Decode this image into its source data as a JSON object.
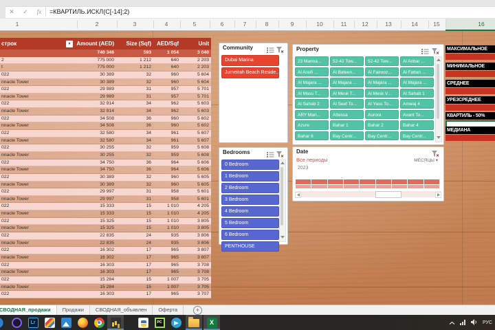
{
  "app": {
    "formula_bar": {
      "cancel_icon": "✕",
      "enter_icon": "✓",
      "fx_icon": "fx",
      "formula": "=КВАРТИЛЬ.ИСКЛ(C[-14];2)"
    }
  },
  "grid": {
    "column_headers": [
      "1",
      "2",
      "3",
      "4",
      "5",
      "6",
      "7",
      "8",
      "9",
      "10",
      "11",
      "12",
      "13",
      "14",
      "15",
      "16"
    ],
    "active_column": "16"
  },
  "pivot": {
    "headers": {
      "rows_label": "строк",
      "amount": "Amount (AED)",
      "size": "Size (Sqf)",
      "aed_sqf": "AED/Sqf",
      "unit": "Unit"
    },
    "rows": [
      {
        "label": "",
        "amount": "740 346",
        "size": "593",
        "aed_sqf": "1 054",
        "unit": "3 040",
        "style": "total"
      },
      {
        "label": "2",
        "amount": "775 000",
        "size": "1 212",
        "aed_sqf": "640",
        "unit": "2 203",
        "style": "solid"
      },
      {
        "label": "t",
        "amount": "775 000",
        "size": "1 212",
        "aed_sqf": "640",
        "unit": "2 203",
        "style": "ghost"
      },
      {
        "label": "022",
        "amount": "30 389",
        "size": "32",
        "aed_sqf": "960",
        "unit": "5 604",
        "style": "solid"
      },
      {
        "label": "nnacle Tower",
        "amount": "30 389",
        "size": "32",
        "aed_sqf": "960",
        "unit": "5 604",
        "style": "ghost"
      },
      {
        "label": "022",
        "amount": "29 989",
        "size": "31",
        "aed_sqf": "957",
        "unit": "5 701",
        "style": "solid"
      },
      {
        "label": "nnacle Tower",
        "amount": "29 989",
        "size": "31",
        "aed_sqf": "957",
        "unit": "5 701",
        "style": "ghost"
      },
      {
        "label": "022",
        "amount": "32 914",
        "size": "34",
        "aed_sqf": "962",
        "unit": "5 603",
        "style": "solid"
      },
      {
        "label": "nnacle Tower",
        "amount": "32 914",
        "size": "34",
        "aed_sqf": "962",
        "unit": "5 603",
        "style": "ghost"
      },
      {
        "label": "022",
        "amount": "34 508",
        "size": "36",
        "aed_sqf": "960",
        "unit": "5 602",
        "style": "solid"
      },
      {
        "label": "nnacle Tower",
        "amount": "34 508",
        "size": "36",
        "aed_sqf": "960",
        "unit": "5 602",
        "style": "ghost"
      },
      {
        "label": "022",
        "amount": "32 580",
        "size": "34",
        "aed_sqf": "961",
        "unit": "5 607",
        "style": "solid"
      },
      {
        "label": "nnacle Tower",
        "amount": "32 580",
        "size": "34",
        "aed_sqf": "961",
        "unit": "5 607",
        "style": "ghost"
      },
      {
        "label": "022",
        "amount": "30 255",
        "size": "32",
        "aed_sqf": "959",
        "unit": "5 608",
        "style": "solid"
      },
      {
        "label": "nnacle Tower",
        "amount": "30 255",
        "size": "32",
        "aed_sqf": "959",
        "unit": "5 608",
        "style": "ghost"
      },
      {
        "label": "022",
        "amount": "34 750",
        "size": "36",
        "aed_sqf": "964",
        "unit": "5 606",
        "style": "solid"
      },
      {
        "label": "nnacle Tower",
        "amount": "34 750",
        "size": "36",
        "aed_sqf": "964",
        "unit": "5 606",
        "style": "ghost"
      },
      {
        "label": "022",
        "amount": "30 389",
        "size": "32",
        "aed_sqf": "960",
        "unit": "5 605",
        "style": "solid"
      },
      {
        "label": "nnacle Tower",
        "amount": "30 389",
        "size": "32",
        "aed_sqf": "960",
        "unit": "5 605",
        "style": "ghost"
      },
      {
        "label": "022",
        "amount": "29 997",
        "size": "31",
        "aed_sqf": "958",
        "unit": "5 601",
        "style": "solid"
      },
      {
        "label": "nnacle Tower",
        "amount": "29 997",
        "size": "31",
        "aed_sqf": "958",
        "unit": "5 601",
        "style": "ghost"
      },
      {
        "label": "022",
        "amount": "15 333",
        "size": "15",
        "aed_sqf": "1 010",
        "unit": "4 205",
        "style": "solid"
      },
      {
        "label": "nnacle Tower",
        "amount": "15 333",
        "size": "15",
        "aed_sqf": "1 010",
        "unit": "4 205",
        "style": "ghost"
      },
      {
        "label": "022",
        "amount": "15 325",
        "size": "15",
        "aed_sqf": "1 010",
        "unit": "3 805",
        "style": "solid"
      },
      {
        "label": "nnacle Tower",
        "amount": "15 325",
        "size": "15",
        "aed_sqf": "1 010",
        "unit": "3 805",
        "style": "ghost"
      },
      {
        "label": "022",
        "amount": "22 835",
        "size": "24",
        "aed_sqf": "935",
        "unit": "3 806",
        "style": "solid"
      },
      {
        "label": "nnacle Tower",
        "amount": "22 835",
        "size": "24",
        "aed_sqf": "935",
        "unit": "3 806",
        "style": "ghost"
      },
      {
        "label": "022",
        "amount": "16 302",
        "size": "17",
        "aed_sqf": "965",
        "unit": "3 807",
        "style": "solid"
      },
      {
        "label": "nnacle Tower",
        "amount": "16 302",
        "size": "17",
        "aed_sqf": "965",
        "unit": "3 807",
        "style": "ghost"
      },
      {
        "label": "022",
        "amount": "16 303",
        "size": "17",
        "aed_sqf": "965",
        "unit": "3 708",
        "style": "solid"
      },
      {
        "label": "nnacle Tower",
        "amount": "16 303",
        "size": "17",
        "aed_sqf": "965",
        "unit": "3 708",
        "style": "ghost"
      },
      {
        "label": "022",
        "amount": "15 284",
        "size": "15",
        "aed_sqf": "1 007",
        "unit": "3 705",
        "style": "solid"
      },
      {
        "label": "nnacle Tower",
        "amount": "15 284",
        "size": "15",
        "aed_sqf": "1 007",
        "unit": "3 705",
        "style": "ghost"
      },
      {
        "label": "022",
        "amount": "16 303",
        "size": "17",
        "aed_sqf": "965",
        "unit": "3 707",
        "style": "solid"
      }
    ]
  },
  "slicers": {
    "community": {
      "title": "Community",
      "items": [
        "Dubai Marina",
        "Jumeirah Beach Reside..."
      ]
    },
    "property": {
      "title": "Property",
      "items": [
        "23 Marina...",
        "52-42 Tow...",
        "52-42 Tow...",
        "Al Anbar ...",
        "Al Areifi ...",
        "Al Bateen...",
        "Al Fairooz...",
        "Al Fattan ...",
        "Al Majara ...",
        "Al Majara ...",
        "Al Majara ...",
        "Al Majara ...",
        "Al Mass T...",
        "Al Mesk T...",
        "Al Mesk V...",
        "Al Sahab 1",
        "Al Sahab 2",
        "Al Seef To...",
        "Al Yass To...",
        "Amwaj 4",
        "ARY Mari...",
        "Attessa",
        "Aurora",
        "Avant To...",
        "Azure",
        "Bahar 1",
        "Bahar 2",
        "Bahar 4",
        "Bahar 6",
        "Bay Centr...",
        "Bay Centr...",
        "Bay Centr..."
      ]
    },
    "bedrooms": {
      "title": "Bedrooms",
      "items": [
        "0 Bedroom",
        "1 Bedroom",
        "2 Bedroom",
        "3 Bedroom",
        "4 Bedroom",
        "5 Bedroom",
        "6 Bedroom",
        "PENTHOUSE"
      ]
    },
    "date": {
      "title": "Date",
      "period_label": "Все периоды",
      "level": "МЕСЯЦЫ",
      "year": "2023",
      "months": [
        "МАР",
        "АПР",
        "МАЙ",
        "ИЮН",
        "ИЮЛ",
        "АВГ",
        "СЕН",
        "ОКТ",
        "НОЯ"
      ]
    }
  },
  "stats": [
    {
      "label": "МАКСИМАЛЬНОЕ",
      "cell": "red"
    },
    {
      "label": "МИНИМАЛЬНОЕ",
      "cell": "red"
    },
    {
      "label": "СРЕДНЕЕ",
      "cell": "red"
    },
    {
      "label": "УРЕЗСРЕДНЕЕ",
      "cell": "red"
    },
    {
      "label": "КВАРТИЛЬ - 50%",
      "cell": "active"
    },
    {
      "label": "МЕДИАНА",
      "cell": "red"
    }
  ],
  "sheet_tabs": {
    "tabs": [
      {
        "label": "СВОДНАЯ_продажи",
        "active": true
      },
      {
        "label": "Продажи",
        "active": false
      },
      {
        "label": "СВОДНАЯ_объявлен",
        "active": false
      },
      {
        "label": "Оферта",
        "active": false
      }
    ],
    "new_sheet_icon": "+"
  },
  "taskbar": {
    "icons": [
      {
        "name": "cut-app-icon"
      },
      {
        "name": "purple-ring-app-icon"
      },
      {
        "name": "lightroom-icon",
        "text": "Lr"
      },
      {
        "name": "paint-icon"
      },
      {
        "name": "photos-icon"
      },
      {
        "name": "firefox-icon"
      },
      {
        "name": "chrome-icon"
      },
      {
        "name": "powerbi-icon",
        "open": true
      },
      {
        "name": "python-file-icon"
      },
      {
        "name": "pycharm-icon",
        "text": "PC"
      },
      {
        "name": "telegram-icon"
      },
      {
        "name": "explorer-icon",
        "open": true
      },
      {
        "name": "excel-icon",
        "text": "X",
        "open": true
      }
    ],
    "tray": {
      "language": "РУС"
    }
  },
  "colors": {
    "pivot_header_red": "#b23a26",
    "row_pink": "#f7d7d0",
    "slicer_red": "#e7432e",
    "slicer_teal": "#52c3a4",
    "slicer_blue": "#5866cf",
    "stat_red": "#c63421",
    "active_green": "#1e7145",
    "timeline_bar": "#df6b58"
  }
}
